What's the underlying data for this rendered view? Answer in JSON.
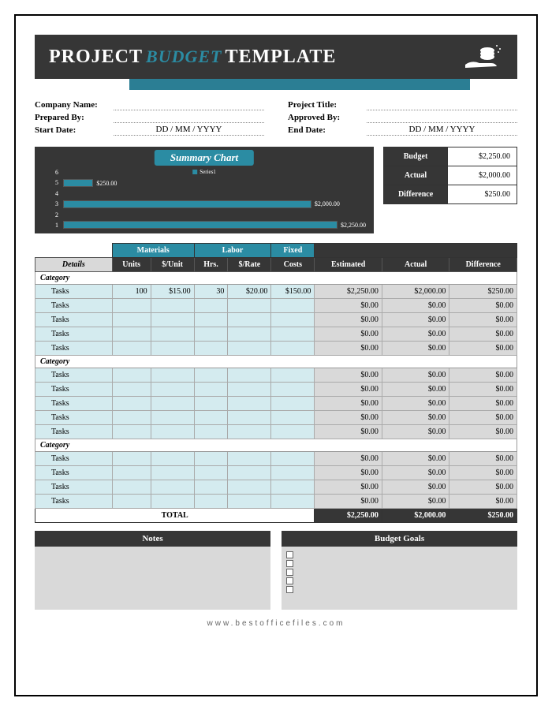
{
  "banner": {
    "w1": "PROJECT",
    "w2": "BUDGET",
    "w3": "TEMPLATE"
  },
  "meta": {
    "left": [
      {
        "label": "Company Name:",
        "value": ""
      },
      {
        "label": "Prepared By:",
        "value": ""
      },
      {
        "label": "Start Date:",
        "value": "DD / MM / YYYY"
      }
    ],
    "right": [
      {
        "label": "Project Title:",
        "value": ""
      },
      {
        "label": "Approved By:",
        "value": ""
      },
      {
        "label": "End Date:",
        "value": "DD / MM / YYYY"
      }
    ]
  },
  "chart": {
    "title": "Summary Chart",
    "type": "bar-horizontal",
    "background_color": "#363636",
    "bar_color": "#2b8ca3",
    "text_color": "#ffffff",
    "legend_label": "Series1",
    "y_labels": [
      "6",
      "5",
      "4",
      "3",
      "2",
      "1"
    ],
    "bars": [
      {
        "y": 5,
        "value": 250.0,
        "label": "$250.00",
        "width_pct": 10
      },
      {
        "y": 3,
        "value": 2000.0,
        "label": "$2,000.00",
        "width_pct": 82
      },
      {
        "y": 1,
        "value": 2250.0,
        "label": "$2,250.00",
        "width_pct": 92
      }
    ],
    "xlim": [
      0,
      2500
    ]
  },
  "summary": [
    {
      "label": "Budget",
      "value": "$2,250.00"
    },
    {
      "label": "Actual",
      "value": "$2,000.00"
    },
    {
      "label": "Difference",
      "value": "$250.00"
    }
  ],
  "table": {
    "group_headers": {
      "materials": "Materials",
      "labor": "Labor",
      "fixed": "Fixed"
    },
    "columns": {
      "details": "Details",
      "units": "Units",
      "per_unit": "$/Unit",
      "hrs": "Hrs.",
      "rate": "$/Rate",
      "costs": "Costs",
      "estimated": "Estimated",
      "actual": "Actual",
      "difference": "Difference"
    },
    "sections": [
      {
        "category": "Category",
        "rows": [
          {
            "task": "Tasks",
            "units": "100",
            "per_unit": "$15.00",
            "hrs": "30",
            "rate": "$20.00",
            "costs": "$150.00",
            "estimated": "$2,250.00",
            "actual": "$2,000.00",
            "difference": "$250.00"
          },
          {
            "task": "Tasks",
            "units": "",
            "per_unit": "",
            "hrs": "",
            "rate": "",
            "costs": "",
            "estimated": "$0.00",
            "actual": "$0.00",
            "difference": "$0.00"
          },
          {
            "task": "Tasks",
            "units": "",
            "per_unit": "",
            "hrs": "",
            "rate": "",
            "costs": "",
            "estimated": "$0.00",
            "actual": "$0.00",
            "difference": "$0.00"
          },
          {
            "task": "Tasks",
            "units": "",
            "per_unit": "",
            "hrs": "",
            "rate": "",
            "costs": "",
            "estimated": "$0.00",
            "actual": "$0.00",
            "difference": "$0.00"
          },
          {
            "task": "Tasks",
            "units": "",
            "per_unit": "",
            "hrs": "",
            "rate": "",
            "costs": "",
            "estimated": "$0.00",
            "actual": "$0.00",
            "difference": "$0.00"
          }
        ]
      },
      {
        "category": "Category",
        "rows": [
          {
            "task": "Tasks",
            "units": "",
            "per_unit": "",
            "hrs": "",
            "rate": "",
            "costs": "",
            "estimated": "$0.00",
            "actual": "$0.00",
            "difference": "$0.00"
          },
          {
            "task": "Tasks",
            "units": "",
            "per_unit": "",
            "hrs": "",
            "rate": "",
            "costs": "",
            "estimated": "$0.00",
            "actual": "$0.00",
            "difference": "$0.00"
          },
          {
            "task": "Tasks",
            "units": "",
            "per_unit": "",
            "hrs": "",
            "rate": "",
            "costs": "",
            "estimated": "$0.00",
            "actual": "$0.00",
            "difference": "$0.00"
          },
          {
            "task": "Tasks",
            "units": "",
            "per_unit": "",
            "hrs": "",
            "rate": "",
            "costs": "",
            "estimated": "$0.00",
            "actual": "$0.00",
            "difference": "$0.00"
          },
          {
            "task": "Tasks",
            "units": "",
            "per_unit": "",
            "hrs": "",
            "rate": "",
            "costs": "",
            "estimated": "$0.00",
            "actual": "$0.00",
            "difference": "$0.00"
          }
        ]
      },
      {
        "category": "Category",
        "rows": [
          {
            "task": "Tasks",
            "units": "",
            "per_unit": "",
            "hrs": "",
            "rate": "",
            "costs": "",
            "estimated": "$0.00",
            "actual": "$0.00",
            "difference": "$0.00"
          },
          {
            "task": "Tasks",
            "units": "",
            "per_unit": "",
            "hrs": "",
            "rate": "",
            "costs": "",
            "estimated": "$0.00",
            "actual": "$0.00",
            "difference": "$0.00"
          },
          {
            "task": "Tasks",
            "units": "",
            "per_unit": "",
            "hrs": "",
            "rate": "",
            "costs": "",
            "estimated": "$0.00",
            "actual": "$0.00",
            "difference": "$0.00"
          },
          {
            "task": "Tasks",
            "units": "",
            "per_unit": "",
            "hrs": "",
            "rate": "",
            "costs": "",
            "estimated": "$0.00",
            "actual": "$0.00",
            "difference": "$0.00"
          }
        ]
      }
    ],
    "total": {
      "label": "TOTAL",
      "estimated": "$2,250.00",
      "actual": "$2,000.00",
      "difference": "$250.00"
    }
  },
  "notes": {
    "header": "Notes"
  },
  "goals": {
    "header": "Budget Goals",
    "items": [
      "",
      "",
      "",
      "",
      ""
    ]
  },
  "footer": "www.bestofficefiles.com",
  "colors": {
    "dark": "#363636",
    "teal": "#2b8ca3",
    "lightblue": "#d4ebef",
    "grey": "#d9d9d9"
  }
}
